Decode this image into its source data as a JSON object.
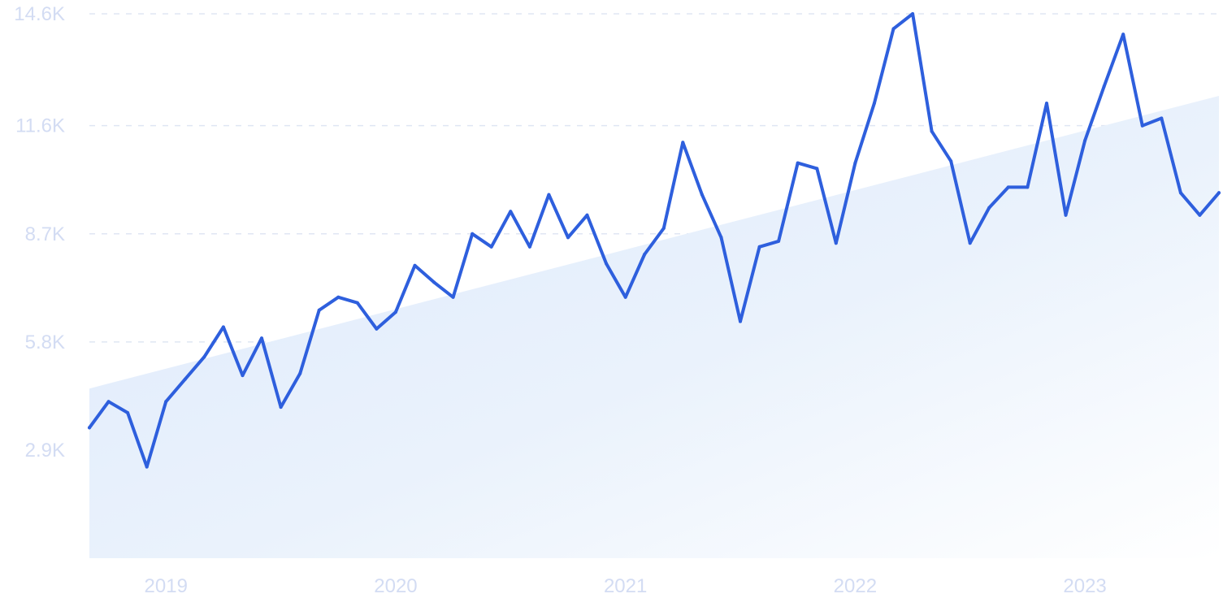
{
  "chart_data": {
    "type": "line",
    "title": "",
    "xlabel": "",
    "ylabel": "",
    "ylim": [
      0,
      14600
    ],
    "y_ticks": [
      {
        "value": 2900,
        "label": "2.9K"
      },
      {
        "value": 5800,
        "label": "5.8K"
      },
      {
        "value": 8700,
        "label": "8.7K"
      },
      {
        "value": 11600,
        "label": "11.6K"
      },
      {
        "value": 14600,
        "label": "14.6K"
      }
    ],
    "x_ticks": [
      {
        "value": "2019-01",
        "label": "2019"
      },
      {
        "value": "2020-01",
        "label": "2020"
      },
      {
        "value": "2021-01",
        "label": "2021"
      },
      {
        "value": "2022-01",
        "label": "2022"
      },
      {
        "value": "2023-01",
        "label": "2023"
      }
    ],
    "grid": "horizontal-dashed",
    "legend": "none",
    "colors": {
      "line": "#2e5fdd",
      "trend_fill": "#e3eefb",
      "tick_text": "#d3dcf3",
      "grid": "#dfe6f3"
    },
    "trend": {
      "start": [
        "2018-09",
        4550
      ],
      "end": [
        "2023-08",
        12400
      ]
    },
    "series": [
      {
        "points": [
          [
            "2018-09",
            3500
          ],
          [
            "2018-10",
            4200
          ],
          [
            "2018-11",
            3900
          ],
          [
            "2018-12",
            2450
          ],
          [
            "2019-01",
            4200
          ],
          [
            "2019-02",
            4800
          ],
          [
            "2019-03",
            5400
          ],
          [
            "2019-04",
            6200
          ],
          [
            "2019-05",
            4900
          ],
          [
            "2019-06",
            5900
          ],
          [
            "2019-07",
            4050
          ],
          [
            "2019-08",
            4950
          ],
          [
            "2019-09",
            6650
          ],
          [
            "2019-10",
            7000
          ],
          [
            "2019-11",
            6850
          ],
          [
            "2019-12",
            6150
          ],
          [
            "2020-01",
            6600
          ],
          [
            "2020-02",
            7850
          ],
          [
            "2020-03",
            7400
          ],
          [
            "2020-04",
            7000
          ],
          [
            "2020-05",
            8700
          ],
          [
            "2020-06",
            8350
          ],
          [
            "2020-07",
            9300
          ],
          [
            "2020-08",
            8350
          ],
          [
            "2020-09",
            9750
          ],
          [
            "2020-10",
            8600
          ],
          [
            "2020-11",
            9200
          ],
          [
            "2020-12",
            7900
          ],
          [
            "2021-01",
            7000
          ],
          [
            "2021-02",
            8150
          ],
          [
            "2021-03",
            8850
          ],
          [
            "2021-04",
            11150
          ],
          [
            "2021-05",
            9750
          ],
          [
            "2021-06",
            8600
          ],
          [
            "2021-07",
            6350
          ],
          [
            "2021-08",
            8350
          ],
          [
            "2021-09",
            8500
          ],
          [
            "2021-10",
            10600
          ],
          [
            "2021-11",
            10450
          ],
          [
            "2021-12",
            8450
          ],
          [
            "2022-01",
            10600
          ],
          [
            "2022-02",
            12200
          ],
          [
            "2022-03",
            14200
          ],
          [
            "2022-04",
            14600
          ],
          [
            "2022-05",
            11450
          ],
          [
            "2022-06",
            10650
          ],
          [
            "2022-07",
            8450
          ],
          [
            "2022-08",
            9400
          ],
          [
            "2022-09",
            9950
          ],
          [
            "2022-10",
            9950
          ],
          [
            "2022-11",
            12200
          ],
          [
            "2022-12",
            9200
          ],
          [
            "2023-01",
            11200
          ],
          [
            "2023-02",
            12650
          ],
          [
            "2023-03",
            14050
          ],
          [
            "2023-04",
            11600
          ],
          [
            "2023-05",
            11800
          ],
          [
            "2023-06",
            9800
          ],
          [
            "2023-07",
            9200
          ],
          [
            "2023-08",
            9800
          ]
        ]
      }
    ]
  }
}
